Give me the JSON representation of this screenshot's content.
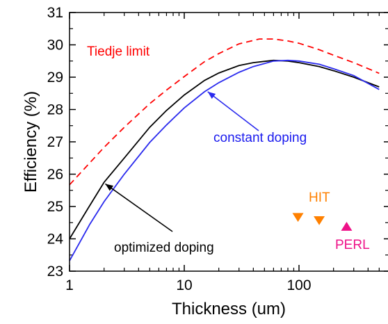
{
  "chart_data": {
    "type": "line",
    "xlabel": "Thickness (um)",
    "ylabel": "Efficiency (%)",
    "xscale": "log",
    "xlim": [
      1,
      500
    ],
    "ylim": [
      23,
      31
    ],
    "grid": false,
    "x_ticks": [
      1,
      10,
      100
    ],
    "x_tick_labels": [
      "1",
      "10",
      "100"
    ],
    "y_ticks": [
      23,
      24,
      25,
      26,
      27,
      28,
      29,
      30,
      31
    ],
    "y_tick_labels": [
      "23",
      "24",
      "25",
      "26",
      "27",
      "28",
      "29",
      "30",
      "31"
    ],
    "series": [
      {
        "label": "Tiedje limit",
        "color": "#ff0000",
        "dash": "dashed",
        "x": [
          1,
          1.5,
          2,
          3,
          5,
          7,
          10,
          15,
          20,
          30,
          45,
          60,
          80,
          100,
          150,
          200,
          300,
          500
        ],
        "y": [
          25.67,
          26.35,
          26.83,
          27.45,
          28.18,
          28.6,
          29.02,
          29.48,
          29.73,
          30.03,
          30.18,
          30.18,
          30.12,
          30.05,
          29.85,
          29.68,
          29.45,
          29.12
        ]
      },
      {
        "label": "optimized doping",
        "color": "#000000",
        "dash": "solid",
        "x": [
          1,
          1.5,
          2,
          3,
          5,
          7,
          10,
          15,
          20,
          30,
          40,
          60,
          80,
          100,
          150,
          200,
          300,
          500
        ],
        "y": [
          24.0,
          25.03,
          25.75,
          26.5,
          27.45,
          27.97,
          28.45,
          28.9,
          29.13,
          29.36,
          29.45,
          29.52,
          29.5,
          29.45,
          29.33,
          29.2,
          29.0,
          28.7
        ]
      },
      {
        "label": "constant doping",
        "color": "#2a2aee",
        "dash": "solid",
        "x": [
          1,
          1.5,
          2,
          3,
          5,
          7,
          10,
          15,
          20,
          30,
          40,
          60,
          80,
          100,
          150,
          200,
          300,
          500
        ],
        "y": [
          23.32,
          24.45,
          25.15,
          26.0,
          26.98,
          27.52,
          28.05,
          28.55,
          28.83,
          29.15,
          29.33,
          29.5,
          29.52,
          29.5,
          29.4,
          29.26,
          29.05,
          28.62
        ]
      }
    ],
    "markers": [
      {
        "label": "HIT",
        "shape": "triangle-down",
        "color": "#ff8000",
        "x": 98,
        "y": 24.67
      },
      {
        "label": "HIT",
        "shape": "triangle-down",
        "color": "#ff8000",
        "x": 150,
        "y": 24.57
      },
      {
        "label": "PERL",
        "shape": "triangle-up",
        "color": "#ee1188",
        "x": 260,
        "y": 24.38
      }
    ],
    "annotations": [
      {
        "text": "Tiedje limit",
        "color": "#ff0000"
      },
      {
        "text": "constant doping",
        "color": "#1a1aee"
      },
      {
        "text": "optimized doping",
        "color": "#000000"
      },
      {
        "text": "HIT",
        "color": "#ff8000"
      },
      {
        "text": "PERL",
        "color": "#ee1188"
      }
    ]
  }
}
